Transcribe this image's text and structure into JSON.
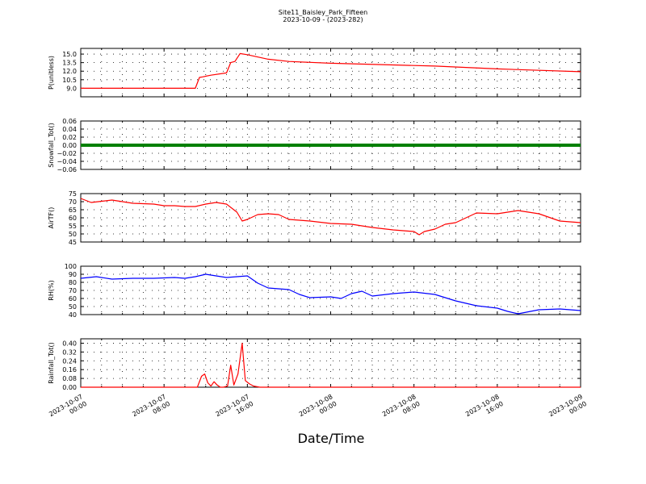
{
  "figure": {
    "title_line1": "Site11_Baisley_Park_Fifteen",
    "title_line2": "2023-10-09 - (2023-282)",
    "xlabel": "Date/Time",
    "x_tick_labels": [
      [
        "2023-10-07",
        "00:00"
      ],
      [
        "2023-10-07",
        "08:00"
      ],
      [
        "2023-10-07",
        "16:00"
      ],
      [
        "2023-10-08",
        "00:00"
      ],
      [
        "2023-10-08",
        "08:00"
      ],
      [
        "2023-10-08",
        "16:00"
      ],
      [
        "2023-10-09",
        "00:00"
      ]
    ]
  },
  "chart_data": [
    {
      "type": "line",
      "ylabel": "P(unitless)",
      "ylim": [
        7.5,
        16.0
      ],
      "yticks": [
        "15.0",
        "13.5",
        "12.0",
        "10.5",
        "9.0"
      ],
      "ytick_values": [
        15.0,
        13.5,
        12.0,
        10.5,
        9.0
      ],
      "color": "#ff0000",
      "grid": true,
      "x": [
        0,
        11,
        11.4,
        11.7,
        12.5,
        14,
        14.4,
        14.8,
        15.3,
        16,
        18,
        20,
        24,
        30,
        34,
        40,
        48
      ],
      "y": [
        9.0,
        9.0,
        10.9,
        11.0,
        11.3,
        11.7,
        13.5,
        13.7,
        15.1,
        14.9,
        14.1,
        13.7,
        13.4,
        13.1,
        12.9,
        12.4,
        11.9
      ]
    },
    {
      "type": "line",
      "ylabel": "Snowfall_Tot()",
      "ylim": [
        -0.06,
        0.06
      ],
      "yticks": [
        "0.06",
        "0.04",
        "0.02",
        "0.00",
        "−0.02",
        "−0.04",
        "−0.06"
      ],
      "ytick_values": [
        0.06,
        0.04,
        0.02,
        0.0,
        -0.02,
        -0.04,
        -0.06
      ],
      "color": "#008000",
      "grid": true,
      "x": [
        0,
        48
      ],
      "y": [
        0.0,
        0.0
      ]
    },
    {
      "type": "line",
      "ylabel": "AirTF()",
      "ylim": [
        45,
        75
      ],
      "yticks": [
        "75",
        "70",
        "65",
        "60",
        "55",
        "50",
        "45"
      ],
      "ytick_values": [
        75,
        70,
        65,
        60,
        55,
        50,
        45
      ],
      "color": "#ff0000",
      "grid": true,
      "x": [
        0,
        1,
        3,
        5,
        7,
        8,
        9,
        10,
        11,
        12,
        13,
        14,
        15,
        15.5,
        16,
        17,
        18,
        19,
        20,
        22,
        24,
        26,
        28,
        30,
        32,
        32.5,
        33,
        34,
        35,
        36,
        38,
        40,
        41,
        42,
        44,
        46,
        48
      ],
      "y": [
        72,
        69.5,
        71,
        69,
        68.5,
        67.5,
        67.5,
        67,
        67,
        68.5,
        69.5,
        68.5,
        63.5,
        58,
        59,
        62,
        62.5,
        62,
        59,
        58,
        56.5,
        56,
        54,
        52.5,
        51.5,
        49.5,
        51.5,
        53,
        56,
        57,
        63,
        62.5,
        63.5,
        64.5,
        62.5,
        58,
        57
      ]
    },
    {
      "type": "line",
      "ylabel": "RH(%)",
      "ylim": [
        40,
        100
      ],
      "yticks": [
        "100",
        "90",
        "80",
        "70",
        "60",
        "50",
        "40"
      ],
      "ytick_values": [
        100,
        90,
        80,
        70,
        60,
        50,
        40
      ],
      "color": "#0000ff",
      "grid": true,
      "x": [
        0,
        1.5,
        3,
        5,
        7,
        9,
        10,
        11,
        12,
        13,
        14,
        15,
        16,
        17,
        18,
        19,
        20,
        21,
        22,
        24,
        25,
        26,
        27,
        28,
        30,
        32,
        34,
        36,
        38,
        40,
        41,
        42,
        44,
        46,
        48
      ],
      "y": [
        85,
        87,
        84,
        85,
        85,
        86,
        85,
        87,
        90,
        88,
        86,
        87,
        88,
        79,
        73,
        72,
        71,
        65,
        61,
        62,
        60,
        66,
        69,
        63,
        66,
        68,
        65,
        57,
        51,
        48,
        44,
        41,
        46,
        47,
        45
      ]
    },
    {
      "type": "line",
      "ylabel": "Rainfall_Tot()",
      "ylim": [
        0.0,
        0.44
      ],
      "yticks": [
        "0.40",
        "0.32",
        "0.24",
        "0.16",
        "0.08",
        "0.00"
      ],
      "ytick_values": [
        0.4,
        0.32,
        0.24,
        0.16,
        0.08,
        0.0
      ],
      "color": "#ff0000",
      "grid": true,
      "x": [
        0,
        11.2,
        11.6,
        11.9,
        12.2,
        12.5,
        12.8,
        13.1,
        13.4,
        13.7,
        14.1,
        14.4,
        14.7,
        15.1,
        15.5,
        15.8,
        16.2,
        16.6,
        17.2,
        48
      ],
      "y": [
        0,
        0,
        0.1,
        0.12,
        0.04,
        0.01,
        0.05,
        0.02,
        0.0,
        0.0,
        0.01,
        0.2,
        0.02,
        0.12,
        0.4,
        0.06,
        0.03,
        0.01,
        0.0,
        0.0
      ]
    }
  ]
}
